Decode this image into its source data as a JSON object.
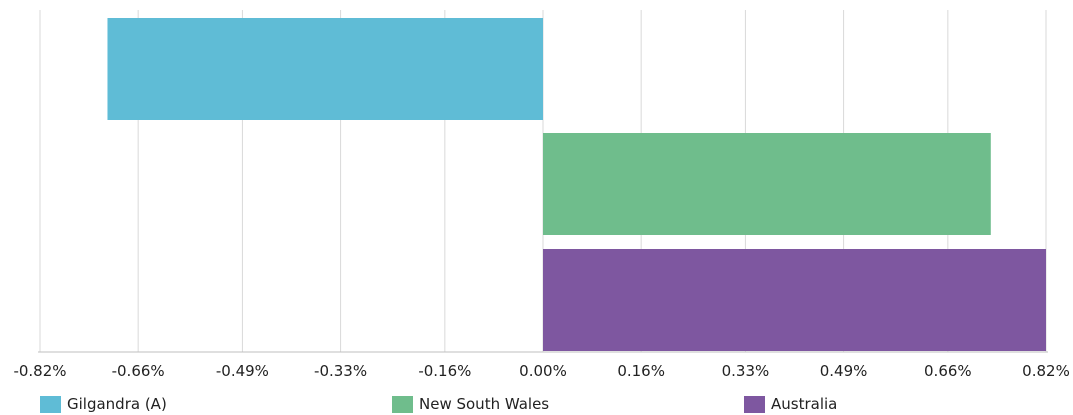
{
  "chart_data": {
    "type": "bar",
    "orientation": "horizontal",
    "categories": [
      "Gilgandra (A)",
      "New South Wales",
      "Australia"
    ],
    "values": [
      -0.71,
      0.73,
      0.82
    ],
    "colors": [
      "#5fbcd6",
      "#6fbd8c",
      "#7e57a0"
    ],
    "xlim": [
      -0.82,
      0.82
    ],
    "x_ticks": [
      -0.82,
      -0.66,
      -0.49,
      -0.33,
      -0.16,
      0.0,
      0.16,
      0.33,
      0.49,
      0.66,
      0.82
    ],
    "x_tick_labels": [
      "-0.82%",
      "-0.66%",
      "-0.49%",
      "-0.33%",
      "-0.16%",
      "0.00%",
      "0.16%",
      "0.33%",
      "0.49%",
      "0.66%",
      "0.82%"
    ],
    "grid": "vertical",
    "legend_position": "bottom",
    "legend": [
      {
        "label": "Gilgandra (A)",
        "color": "#5fbcd6"
      },
      {
        "label": "New South Wales",
        "color": "#6fbd8c"
      },
      {
        "label": "Australia",
        "color": "#7e57a0"
      }
    ],
    "title": "",
    "xlabel": "",
    "ylabel": ""
  }
}
